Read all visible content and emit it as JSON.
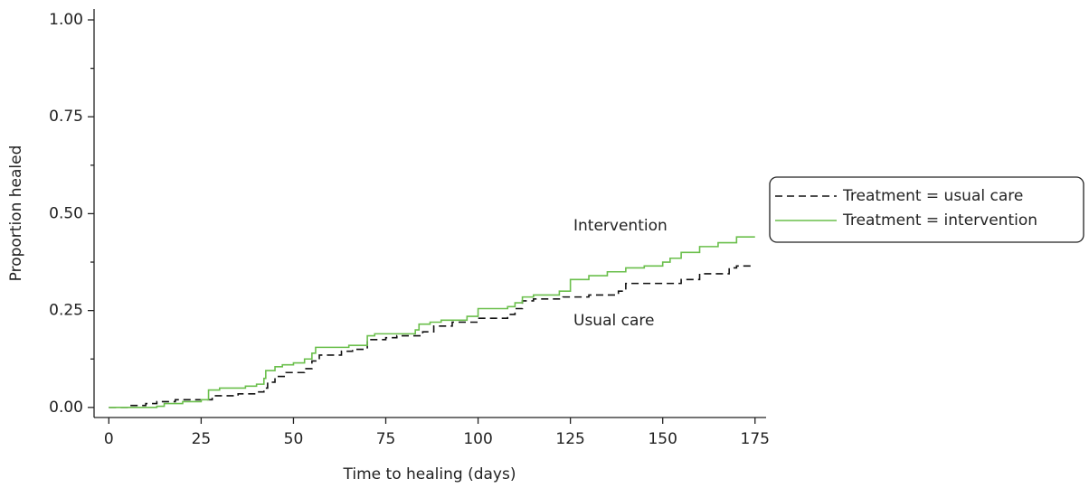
{
  "chart_data": {
    "type": "step",
    "x_label": "Time to healing (days)",
    "y_label": "Proportion healed",
    "xlim": [
      -4,
      178
    ],
    "ylim": [
      -0.026,
      1.028
    ],
    "xticks": [
      0,
      25,
      50,
      75,
      100,
      125,
      150,
      175
    ],
    "yticks": [
      {
        "value": 0,
        "label": "0.00"
      },
      {
        "value": 0.25,
        "label": "0.25"
      },
      {
        "value": 0.5,
        "label": "0.50"
      },
      {
        "value": 0.75,
        "label": "0.75"
      },
      {
        "value": 1,
        "label": "1.00"
      }
    ],
    "yminor_ticks": [
      0.125,
      0.375,
      0.625,
      0.875
    ],
    "legend": "right",
    "annotations": [
      "Intervention",
      "Usual care"
    ],
    "series": [
      {
        "name": "Treatment = usual care",
        "color": "#111111",
        "dashed": true,
        "x": [
          0,
          5,
          10,
          13,
          18,
          28,
          35,
          40,
          42,
          43,
          45,
          48,
          53,
          55,
          57,
          63,
          66,
          70,
          75,
          78,
          85,
          88,
          93,
          100,
          108,
          110,
          112,
          115,
          123,
          130,
          138,
          140,
          155,
          160,
          168,
          170,
          175
        ],
        "values": [
          0,
          0.005,
          0.01,
          0.015,
          0.02,
          0.03,
          0.035,
          0.04,
          0.05,
          0.065,
          0.08,
          0.09,
          0.1,
          0.12,
          0.135,
          0.145,
          0.15,
          0.175,
          0.18,
          0.185,
          0.195,
          0.21,
          0.22,
          0.23,
          0.24,
          0.255,
          0.275,
          0.28,
          0.285,
          0.29,
          0.3,
          0.32,
          0.33,
          0.345,
          0.36,
          0.365,
          0.365
        ]
      },
      {
        "name": "Treatment = intervention",
        "color": "#6abf4b",
        "dashed": false,
        "x": [
          0,
          13,
          15,
          20,
          25,
          27,
          30,
          37,
          40,
          42,
          42.5,
          45,
          47,
          50,
          53,
          55,
          56,
          65,
          70,
          72,
          83,
          84,
          87,
          90,
          97,
          100,
          108,
          110,
          112,
          115,
          122,
          125,
          130,
          135,
          140,
          145,
          150,
          152,
          155,
          160,
          165,
          170,
          175
        ],
        "values": [
          0,
          0.003,
          0.01,
          0.015,
          0.02,
          0.045,
          0.05,
          0.055,
          0.06,
          0.075,
          0.095,
          0.105,
          0.11,
          0.115,
          0.125,
          0.14,
          0.155,
          0.16,
          0.185,
          0.19,
          0.2,
          0.215,
          0.22,
          0.225,
          0.235,
          0.255,
          0.26,
          0.27,
          0.285,
          0.29,
          0.3,
          0.33,
          0.34,
          0.35,
          0.36,
          0.365,
          0.375,
          0.385,
          0.4,
          0.415,
          0.425,
          0.44,
          0.44
        ]
      }
    ]
  }
}
